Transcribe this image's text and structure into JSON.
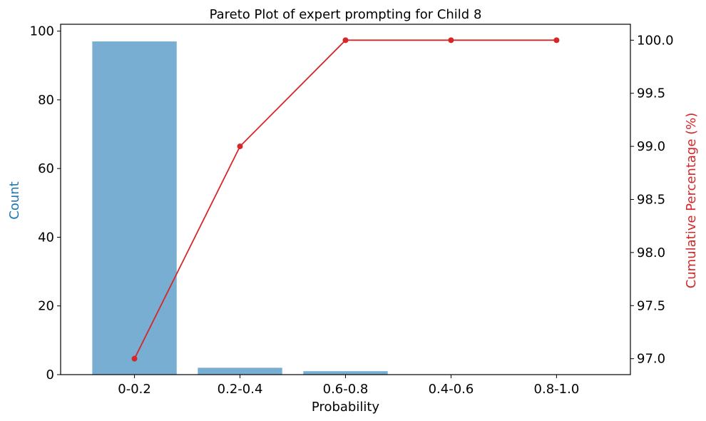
{
  "chart_data": {
    "type": "bar",
    "title": "Pareto Plot of expert prompting for Child 8",
    "xlabel": "Probability",
    "ylabel": "Count",
    "y2label": "Cumulative Percentage (%)",
    "categories": [
      "0-0.2",
      "0.2-0.4",
      "0.6-0.8",
      "0.4-0.6",
      "0.8-1.0"
    ],
    "series": [
      {
        "values": [
          97,
          2,
          1,
          0,
          0
        ],
        "color": "#77aed1",
        "axis": "left",
        "type": "bar"
      },
      {
        "values": [
          97.0,
          99.0,
          100.0,
          100.0,
          100.0
        ],
        "color": "#d62728",
        "axis": "right",
        "type": "line"
      }
    ],
    "ylim": [
      0,
      102
    ],
    "y2lim": [
      96.85,
      100.15
    ],
    "yticks": [
      "0",
      "20",
      "40",
      "60",
      "80",
      "100"
    ],
    "y2ticks": [
      "97.0",
      "97.5",
      "98.0",
      "98.5",
      "99.0",
      "99.5",
      "100.0"
    ],
    "ylabel_color": "#1f77b4",
    "y2label_color": "#d62728",
    "grid": false,
    "legend": "none"
  }
}
